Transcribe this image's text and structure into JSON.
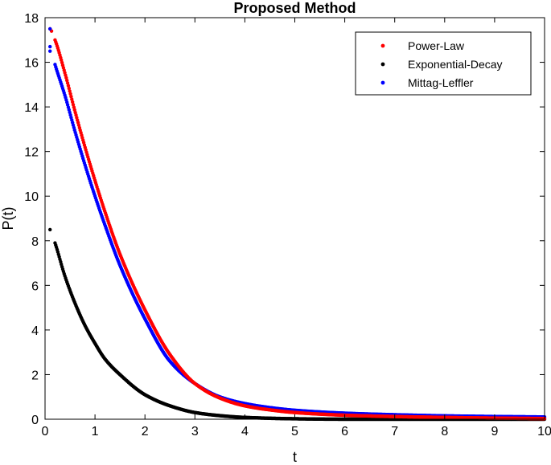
{
  "chart_data": {
    "type": "scatter",
    "title": "Proposed Method",
    "xlabel": "t",
    "ylabel": "P(t)",
    "xlim": [
      0,
      10
    ],
    "ylim": [
      0,
      18
    ],
    "xticks": [
      0,
      1,
      2,
      3,
      4,
      5,
      6,
      7,
      8,
      9,
      10
    ],
    "yticks": [
      0,
      2,
      4,
      6,
      8,
      10,
      12,
      14,
      16,
      18
    ],
    "grid": false,
    "legend_position": "top-right",
    "series": [
      {
        "name": "Power-Law",
        "color": "#ff0000",
        "x": [
          0.1,
          0.2,
          0.4,
          0.6,
          0.8,
          1.0,
          1.2,
          1.5,
          2.0,
          2.5,
          3.0,
          3.5,
          4.0,
          4.5,
          5.0,
          6.0,
          7.0,
          8.0,
          9.0,
          10.0
        ],
        "y": [
          17.5,
          17.0,
          15.5,
          13.8,
          12.2,
          10.7,
          9.3,
          7.4,
          4.9,
          2.9,
          1.6,
          0.95,
          0.6,
          0.42,
          0.3,
          0.18,
          0.12,
          0.08,
          0.05,
          0.03
        ]
      },
      {
        "name": "Exponential-Decay",
        "color": "#000000",
        "x": [
          0.1,
          0.2,
          0.4,
          0.6,
          0.8,
          1.0,
          1.2,
          1.5,
          2.0,
          2.5,
          3.0,
          3.5,
          4.0,
          5.0,
          6.0,
          7.0,
          8.0,
          9.0,
          10.0
        ],
        "y": [
          8.5,
          7.9,
          6.4,
          5.2,
          4.2,
          3.4,
          2.7,
          2.0,
          1.1,
          0.6,
          0.3,
          0.16,
          0.08,
          0.02,
          0.0,
          0.0,
          0.0,
          0.0,
          0.0
        ]
      },
      {
        "name": "Mittag-Leffler",
        "color": "#0000ff",
        "x": [
          0.1,
          0.2,
          0.4,
          0.6,
          0.8,
          1.0,
          1.2,
          1.5,
          2.0,
          2.5,
          3.0,
          3.5,
          4.0,
          4.5,
          5.0,
          6.0,
          7.0,
          8.0,
          9.0,
          10.0
        ],
        "y": [
          16.7,
          15.9,
          14.5,
          12.9,
          11.4,
          10.0,
          8.7,
          6.9,
          4.5,
          2.6,
          1.6,
          1.0,
          0.7,
          0.52,
          0.4,
          0.27,
          0.2,
          0.15,
          0.12,
          0.1
        ]
      }
    ],
    "extra_points": [
      {
        "series": "Power-Law",
        "x": 0.13,
        "y": 17.4
      },
      {
        "series": "Mittag-Leffler",
        "x": 0.1,
        "y": 17.5
      },
      {
        "series": "Mittag-Leffler",
        "x": 0.1,
        "y": 16.5
      }
    ]
  }
}
